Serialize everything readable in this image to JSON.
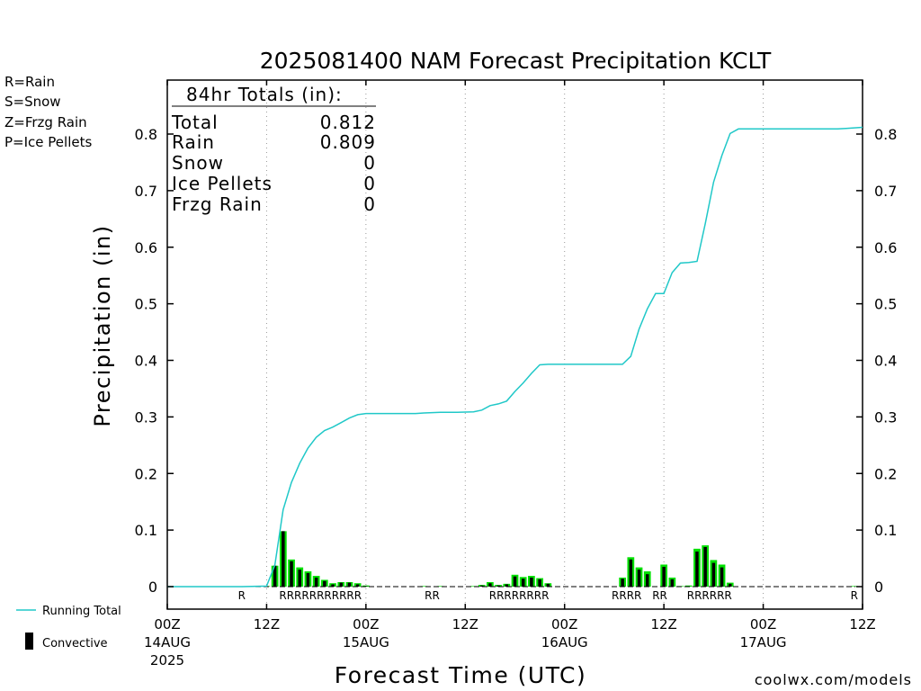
{
  "chart_data": {
    "type": "bar",
    "title": "2025081400 NAM Forecast Precipitation KCLT",
    "xlabel": "Forecast Time (UTC)",
    "ylabel": "Precipitation (in)",
    "xlim_hours": [
      0,
      84
    ],
    "ylim": [
      0,
      0.9
    ],
    "yticks": [
      0,
      0.1,
      0.2,
      0.3,
      0.4,
      0.5,
      0.6,
      0.7,
      0.8
    ],
    "ytick_labels": [
      "0",
      "0.1",
      "0.2",
      "0.3",
      "0.4",
      "0.5",
      "0.6",
      "0.7",
      "0.8"
    ],
    "xticks": [
      {
        "hour": 0,
        "label": "00Z",
        "date": "14AUG",
        "year": "2025"
      },
      {
        "hour": 12,
        "label": "12Z",
        "date": "",
        "year": ""
      },
      {
        "hour": 24,
        "label": "00Z",
        "date": "15AUG",
        "year": ""
      },
      {
        "hour": 36,
        "label": "12Z",
        "date": "",
        "year": ""
      },
      {
        "hour": 48,
        "label": "00Z",
        "date": "16AUG",
        "year": ""
      },
      {
        "hour": 60,
        "label": "12Z",
        "date": "",
        "year": ""
      },
      {
        "hour": 72,
        "label": "00Z",
        "date": "17AUG",
        "year": ""
      },
      {
        "hour": 84,
        "label": "12Z",
        "date": "",
        "year": ""
      }
    ],
    "totals_box": {
      "heading": "84hr Totals (in):",
      "rows": [
        {
          "label": "Total",
          "value": "0.812"
        },
        {
          "label": "Rain",
          "value": "0.809"
        },
        {
          "label": "Snow",
          "value": "0"
        },
        {
          "label": "Ice Pellets",
          "value": "0"
        },
        {
          "label": "Frzg Rain",
          "value": "0"
        }
      ]
    },
    "series": [
      {
        "name": "Running Total",
        "color": "#20c8c8",
        "x": [
          0,
          9,
          12,
          13,
          14,
          15,
          16,
          17,
          18,
          19,
          20,
          21,
          22,
          23,
          24,
          25,
          30,
          31,
          33,
          35,
          37,
          38,
          39,
          40,
          41,
          42,
          43,
          44,
          45,
          46,
          48,
          50,
          52,
          53,
          54,
          55,
          56,
          57,
          58,
          59,
          60,
          61,
          62,
          63,
          64,
          65,
          66,
          67,
          68,
          69,
          70,
          73,
          76,
          77,
          78,
          79,
          80,
          81,
          82,
          83,
          84
        ],
        "y": [
          0,
          0,
          0.001,
          0.038,
          0.136,
          0.184,
          0.218,
          0.245,
          0.264,
          0.276,
          0.282,
          0.29,
          0.298,
          0.304,
          0.306,
          0.306,
          0.306,
          0.307,
          0.308,
          0.308,
          0.309,
          0.312,
          0.32,
          0.323,
          0.328,
          0.345,
          0.36,
          0.377,
          0.392,
          0.393,
          0.393,
          0.393,
          0.393,
          0.393,
          0.393,
          0.393,
          0.407,
          0.455,
          0.491,
          0.518,
          0.518,
          0.555,
          0.572,
          0.573,
          0.575,
          0.642,
          0.715,
          0.762,
          0.801,
          0.809,
          0.809,
          0.809,
          0.809,
          0.809,
          0.809,
          0.809,
          0.809,
          0.809,
          0.81,
          0.811,
          0.812
        ]
      },
      {
        "name": "Rain",
        "color": "#00e000",
        "x": [
          12,
          13,
          14,
          15,
          16,
          17,
          18,
          19,
          20,
          21,
          22,
          23,
          24,
          31,
          33,
          37,
          38,
          39,
          40,
          41,
          42,
          43,
          44,
          45,
          46,
          54,
          55,
          56,
          57,
          58,
          59,
          60,
          61,
          62,
          63,
          64,
          65,
          66,
          67,
          68,
          83
        ],
        "values": [
          0.001,
          0.037,
          0.098,
          0.048,
          0.034,
          0.027,
          0.019,
          0.012,
          0.006,
          0.008,
          0.008,
          0.006,
          0.002,
          0.001,
          0.001,
          0.001,
          0.003,
          0.008,
          0.003,
          0.005,
          0.021,
          0.017,
          0.019,
          0.015,
          0.006,
          0.0,
          0.016,
          0.052,
          0.034,
          0.027,
          0.0,
          0.039,
          0.016,
          0.001,
          0.002,
          0.067,
          0.073,
          0.047,
          0.039,
          0.007,
          0.001
        ]
      },
      {
        "name": "Convective",
        "color": "#000000",
        "x": [
          12,
          13,
          14,
          15,
          16,
          17,
          18,
          19,
          20,
          21,
          22,
          23,
          24,
          31,
          33,
          37,
          38,
          39,
          40,
          41,
          42,
          43,
          44,
          45,
          46,
          54,
          55,
          56,
          57,
          58,
          59,
          60,
          61,
          62,
          63,
          64,
          65,
          66,
          67,
          68,
          83
        ],
        "values": [
          0.0,
          0.037,
          0.098,
          0.045,
          0.03,
          0.024,
          0.016,
          0.01,
          0.004,
          0.007,
          0.007,
          0.004,
          0.001,
          0.0,
          0.0,
          0.0,
          0.002,
          0.006,
          0.002,
          0.004,
          0.018,
          0.014,
          0.016,
          0.013,
          0.005,
          0.0,
          0.014,
          0.048,
          0.03,
          0.022,
          0.0,
          0.035,
          0.013,
          0.0,
          0.0,
          0.062,
          0.07,
          0.042,
          0.034,
          0.005,
          0.0
        ]
      }
    ],
    "precip_type_labels": [
      {
        "text": "R",
        "hour": 9
      },
      {
        "text": "RRRRRRRRRRR",
        "hour": 18.5
      },
      {
        "text": "RR",
        "hour": 32
      },
      {
        "text": "RRRRRRRR",
        "hour": 42.5
      },
      {
        "text": "RRRR",
        "hour": 55.5
      },
      {
        "text": "RR",
        "hour": 59.5
      },
      {
        "text": "RRRRRR",
        "hour": 65.5
      },
      {
        "text": "R",
        "hour": 83
      }
    ],
    "grid": "vertical dotted lines at 12-hour intervals",
    "legend": "bottom-left",
    "type_key": [
      {
        "text": "R=Rain",
        "color": "#00d000"
      },
      {
        "text": "S=Snow",
        "color": "#3333ff"
      },
      {
        "text": "Z=Frzg Rain",
        "color": "#ff8000"
      },
      {
        "text": "P=Ice Pellets",
        "color": "#ff1080"
      }
    ],
    "legend_items": [
      {
        "text": "Running Total",
        "symbol": "line",
        "color": "#20c8c8"
      },
      {
        "text": "Convective",
        "symbol": "bar",
        "color": "#000000"
      }
    ],
    "watermark": "coolwx.com/models"
  }
}
